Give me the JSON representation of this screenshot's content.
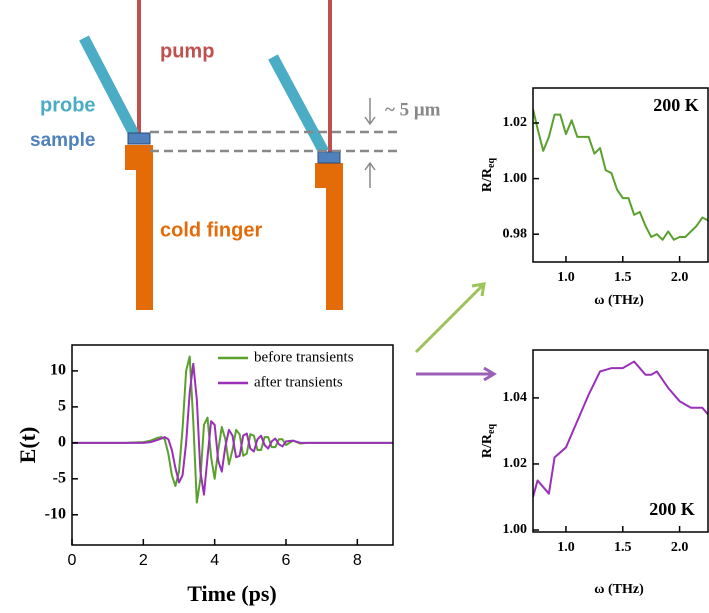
{
  "diagram": {
    "pump": "pump",
    "probe": "probe",
    "sample": "sample",
    "cold_finger": "cold finger",
    "gap": "~ 5 μm"
  },
  "chart_data": [
    {
      "type": "line",
      "xlabel": "Time (ps)",
      "ylabel": "E(t)",
      "x": [
        0,
        1.5,
        2.0,
        2.2,
        2.4,
        2.5,
        2.6,
        2.7,
        2.8,
        2.9,
        3.0,
        3.1,
        3.2,
        3.3,
        3.4,
        3.5,
        3.6,
        3.7,
        3.8,
        3.9,
        4.0,
        4.1,
        4.2,
        4.3,
        4.4,
        4.5,
        4.6,
        4.7,
        4.8,
        4.9,
        5.0,
        5.1,
        5.2,
        5.3,
        5.4,
        5.5,
        5.6,
        5.7,
        5.8,
        5.9,
        6.0,
        6.2,
        6.4,
        6.6,
        7.0,
        9.0
      ],
      "series": [
        {
          "name": "before transients",
          "color": "#5aa02c",
          "values": [
            0,
            0,
            0.1,
            0.3,
            0.7,
            0.8,
            0.5,
            -1.5,
            -4.5,
            -6,
            -4,
            2,
            10,
            12,
            3,
            -8.3,
            -5,
            2.5,
            3.5,
            -2,
            -5,
            -1,
            2.2,
            0.5,
            -3,
            -1,
            1.8,
            1.2,
            -1.8,
            -1.5,
            1.2,
            1,
            -1,
            -1,
            0.8,
            0.8,
            -0.6,
            -0.6,
            0.5,
            0.5,
            -0.3,
            0.3,
            -0.1,
            0,
            0,
            0
          ]
        },
        {
          "name": "after transients",
          "color": "#9b30b8",
          "values": [
            0,
            0,
            0,
            0.1,
            0.4,
            0.6,
            0.8,
            0.5,
            -1,
            -3.5,
            -5.5,
            -4.5,
            0,
            7,
            11,
            6,
            -4,
            -7.2,
            -2,
            3,
            2.5,
            -2.5,
            -4,
            -0.5,
            1.8,
            1,
            -2,
            -1.8,
            1,
            1.3,
            -0.8,
            -1.2,
            0.5,
            1,
            -0.3,
            -0.8,
            0.2,
            0.6,
            -0.2,
            -0.5,
            0.2,
            0.3,
            0,
            0,
            0,
            0
          ]
        }
      ],
      "xlim": [
        0,
        9
      ],
      "xticks": [
        0,
        2,
        4,
        6,
        8
      ],
      "ylim": [
        -14.2,
        13.6
      ],
      "yticks": [
        -10,
        -5,
        0,
        5,
        10
      ],
      "legend": "upper right"
    },
    {
      "type": "line",
      "xlabel": "ω (THz)",
      "ylabel": "R/R",
      "ylabel_sub": "eq",
      "annotation": "200 K",
      "x": [
        0.71,
        0.75,
        0.8,
        0.85,
        0.9,
        0.95,
        1.0,
        1.05,
        1.1,
        1.15,
        1.2,
        1.25,
        1.3,
        1.35,
        1.4,
        1.45,
        1.5,
        1.55,
        1.6,
        1.65,
        1.7,
        1.75,
        1.8,
        1.85,
        1.9,
        1.95,
        2.0,
        2.05,
        2.1,
        2.15,
        2.2,
        2.25
      ],
      "values": [
        1.025,
        1.018,
        1.01,
        1.015,
        1.023,
        1.023,
        1.016,
        1.021,
        1.015,
        1.015,
        1.015,
        1.009,
        1.011,
        1.003,
        1.002,
        0.996,
        0.993,
        0.993,
        0.987,
        0.988,
        0.983,
        0.979,
        0.98,
        0.978,
        0.981,
        0.978,
        0.979,
        0.979,
        0.981,
        0.983,
        0.986,
        0.985
      ],
      "color": "#5aa02c",
      "xlim": [
        0.71,
        2.25
      ],
      "xticks": [
        {
          "value": 1,
          "label": "1.0"
        },
        1.5,
        {
          "value": 2,
          "label": "2.0"
        }
      ],
      "ylim": [
        0.97,
        1.0326
      ],
      "yticks": [
        0.98,
        {
          "value": 1,
          "label": "1.00"
        },
        1.02
      ]
    },
    {
      "type": "line",
      "xlabel": "ω (THz)",
      "ylabel": "R/R",
      "ylabel_sub": "eq",
      "annotation": "200 K",
      "x": [
        0.71,
        0.75,
        0.8,
        0.85,
        0.9,
        1.0,
        1.1,
        1.2,
        1.3,
        1.4,
        1.5,
        1.6,
        1.7,
        1.75,
        1.8,
        1.9,
        2.0,
        2.1,
        2.2,
        2.25
      ],
      "values": [
        1.01,
        1.015,
        1.013,
        1.011,
        1.022,
        1.025,
        1.033,
        1.041,
        1.048,
        1.049,
        1.049,
        1.051,
        1.047,
        1.047,
        1.048,
        1.043,
        1.039,
        1.037,
        1.037,
        1.035
      ],
      "color": "#9b30b8",
      "xlim": [
        0.71,
        2.25
      ],
      "xticks": [
        {
          "value": 1,
          "label": "1.0"
        },
        1.5,
        {
          "value": 2,
          "label": "2.0"
        }
      ],
      "ylim": [
        0.9994,
        1.0545
      ],
      "yticks": [
        {
          "value": 1,
          "label": "1.00"
        },
        1.02,
        1.04
      ]
    }
  ]
}
